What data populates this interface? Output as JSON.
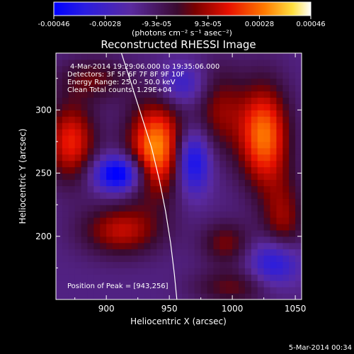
{
  "chart_data": {
    "type": "heatmap",
    "title": "Reconstructed RHESSI Image",
    "xlabel": "Heliocentric X (arcsec)",
    "ylabel": "Heliocentric Y (arcsec)",
    "xlim": [
      860,
      1055
    ],
    "ylim": [
      150,
      345
    ],
    "x_ticks": [
      900,
      950,
      1000,
      1050
    ],
    "y_ticks": [
      200,
      250,
      300
    ],
    "colorbar": {
      "ticks": [
        "-0.00046",
        "-0.00028",
        "-9.3e-05",
        "9.3e-05",
        "0.00028",
        "0.00046"
      ],
      "range": [
        -0.00046,
        0.00046
      ],
      "unit_label": "(photons cm⁻² s⁻¹ asec⁻²)"
    },
    "annotations": [
      "4-Mar-2014 19:29:06.000 to 19:35:06.000",
      "Detectors: 3F 5F 6F 7F 8F 9F 10F",
      "Energy Range: 25.0 - 50.0 keV",
      "Clean     Total counts: 1.29E+04"
    ],
    "peak_label": "Position of Peak = [943,256]",
    "footer_date": "5-Mar-2014 00:34",
    "sources": [
      {
        "x": 940,
        "y": 270,
        "amp": 0.00046,
        "sx": 16,
        "sy": 26
      },
      {
        "x": 1025,
        "y": 280,
        "amp": 0.00042,
        "sx": 14,
        "sy": 28
      },
      {
        "x": 872,
        "y": 275,
        "amp": 0.00032,
        "sx": 14,
        "sy": 22
      },
      {
        "x": 912,
        "y": 205,
        "amp": 0.00026,
        "sx": 22,
        "sy": 14
      },
      {
        "x": 990,
        "y": 300,
        "amp": 0.0002,
        "sx": 14,
        "sy": 24
      },
      {
        "x": 1040,
        "y": 210,
        "amp": 0.00022,
        "sx": 12,
        "sy": 26
      },
      {
        "x": 995,
        "y": 195,
        "amp": 0.00018,
        "sx": 14,
        "sy": 12
      },
      {
        "x": 890,
        "y": 325,
        "amp": 0.00016,
        "sx": 20,
        "sy": 12
      },
      {
        "x": 1000,
        "y": 160,
        "amp": 0.00016,
        "sx": 22,
        "sy": 10
      },
      {
        "x": 910,
        "y": 250,
        "amp": -0.0004,
        "sx": 14,
        "sy": 10
      },
      {
        "x": 968,
        "y": 260,
        "amp": -0.00034,
        "sx": 10,
        "sy": 18
      },
      {
        "x": 1035,
        "y": 180,
        "amp": -0.0003,
        "sx": 14,
        "sy": 14
      },
      {
        "x": 960,
        "y": 320,
        "amp": -0.00018,
        "sx": 14,
        "sy": 12
      }
    ],
    "limb_arc": [
      [
        912,
        345
      ],
      [
        920,
        320
      ],
      [
        928,
        295
      ],
      [
        936,
        270
      ],
      [
        942,
        245
      ],
      [
        947,
        220
      ],
      [
        951,
        195
      ],
      [
        954,
        170
      ],
      [
        956,
        150
      ]
    ]
  }
}
